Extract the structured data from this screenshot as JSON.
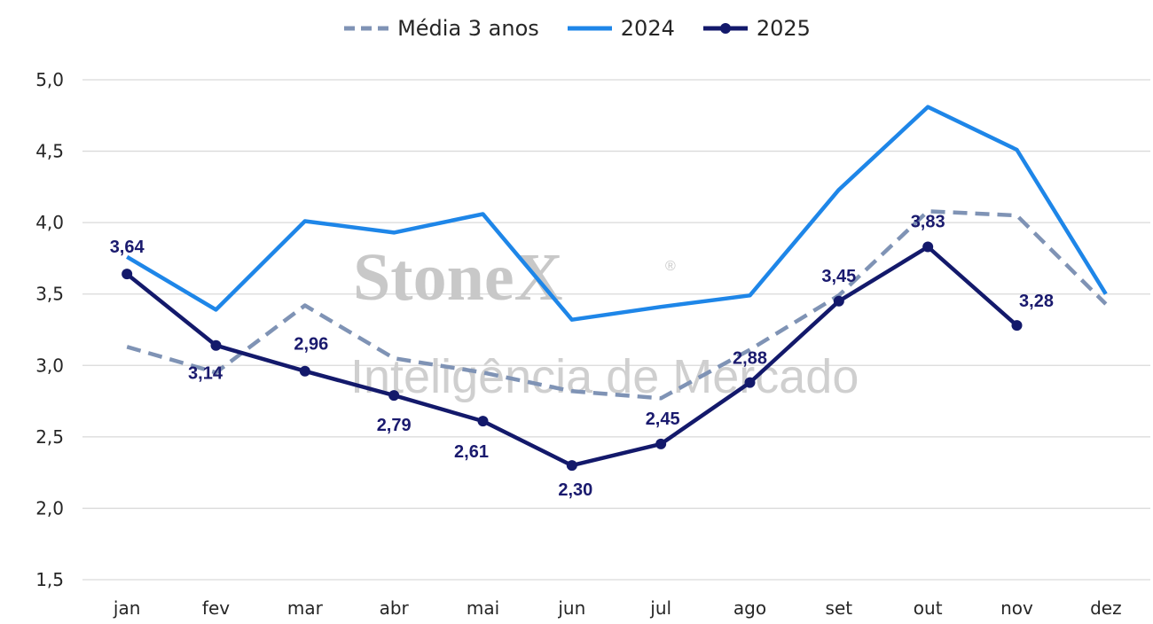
{
  "legend": {
    "items": [
      {
        "label": "Média 3 anos",
        "color": "#7f93b5",
        "style": "dashed"
      },
      {
        "label": "2024",
        "color": "#1e86e8",
        "style": "solid"
      },
      {
        "label": "2025",
        "color": "#13196b",
        "style": "solid-markers"
      }
    ]
  },
  "watermark": {
    "brand": "StoneX",
    "registered": "®",
    "tagline": "Inteligência de Mercado"
  },
  "chart_data": {
    "type": "line",
    "categories": [
      "jan",
      "fev",
      "mar",
      "abr",
      "mai",
      "jun",
      "jul",
      "ago",
      "set",
      "out",
      "nov",
      "dez"
    ],
    "ylim": [
      1.5,
      5.0
    ],
    "yticks": [
      "1,5",
      "2,0",
      "2,5",
      "3,0",
      "3,5",
      "4,0",
      "4,5",
      "5,0"
    ],
    "grid": true,
    "legend_position": "top-center",
    "series": [
      {
        "name": "Média 3 anos",
        "color": "#7f93b5",
        "dash": true,
        "values": [
          3.13,
          2.95,
          3.42,
          3.05,
          2.95,
          2.82,
          2.77,
          3.11,
          3.49,
          4.08,
          4.05,
          3.43
        ]
      },
      {
        "name": "2024",
        "color": "#1e86e8",
        "dash": false,
        "values": [
          3.76,
          3.39,
          4.01,
          3.93,
          4.06,
          3.32,
          3.41,
          3.49,
          4.23,
          4.81,
          4.51,
          3.5
        ]
      },
      {
        "name": "2025",
        "color": "#13196b",
        "dash": false,
        "markers": true,
        "values": [
          3.64,
          3.14,
          2.96,
          2.79,
          2.61,
          2.3,
          2.45,
          2.88,
          3.45,
          3.83,
          3.28,
          null
        ],
        "labels": [
          "3,64",
          "3,14",
          "2,96",
          "2,79",
          "2,61",
          "2,30",
          "2,45",
          "2,88",
          "3,45",
          "3,83",
          "3,28",
          null
        ]
      }
    ]
  }
}
